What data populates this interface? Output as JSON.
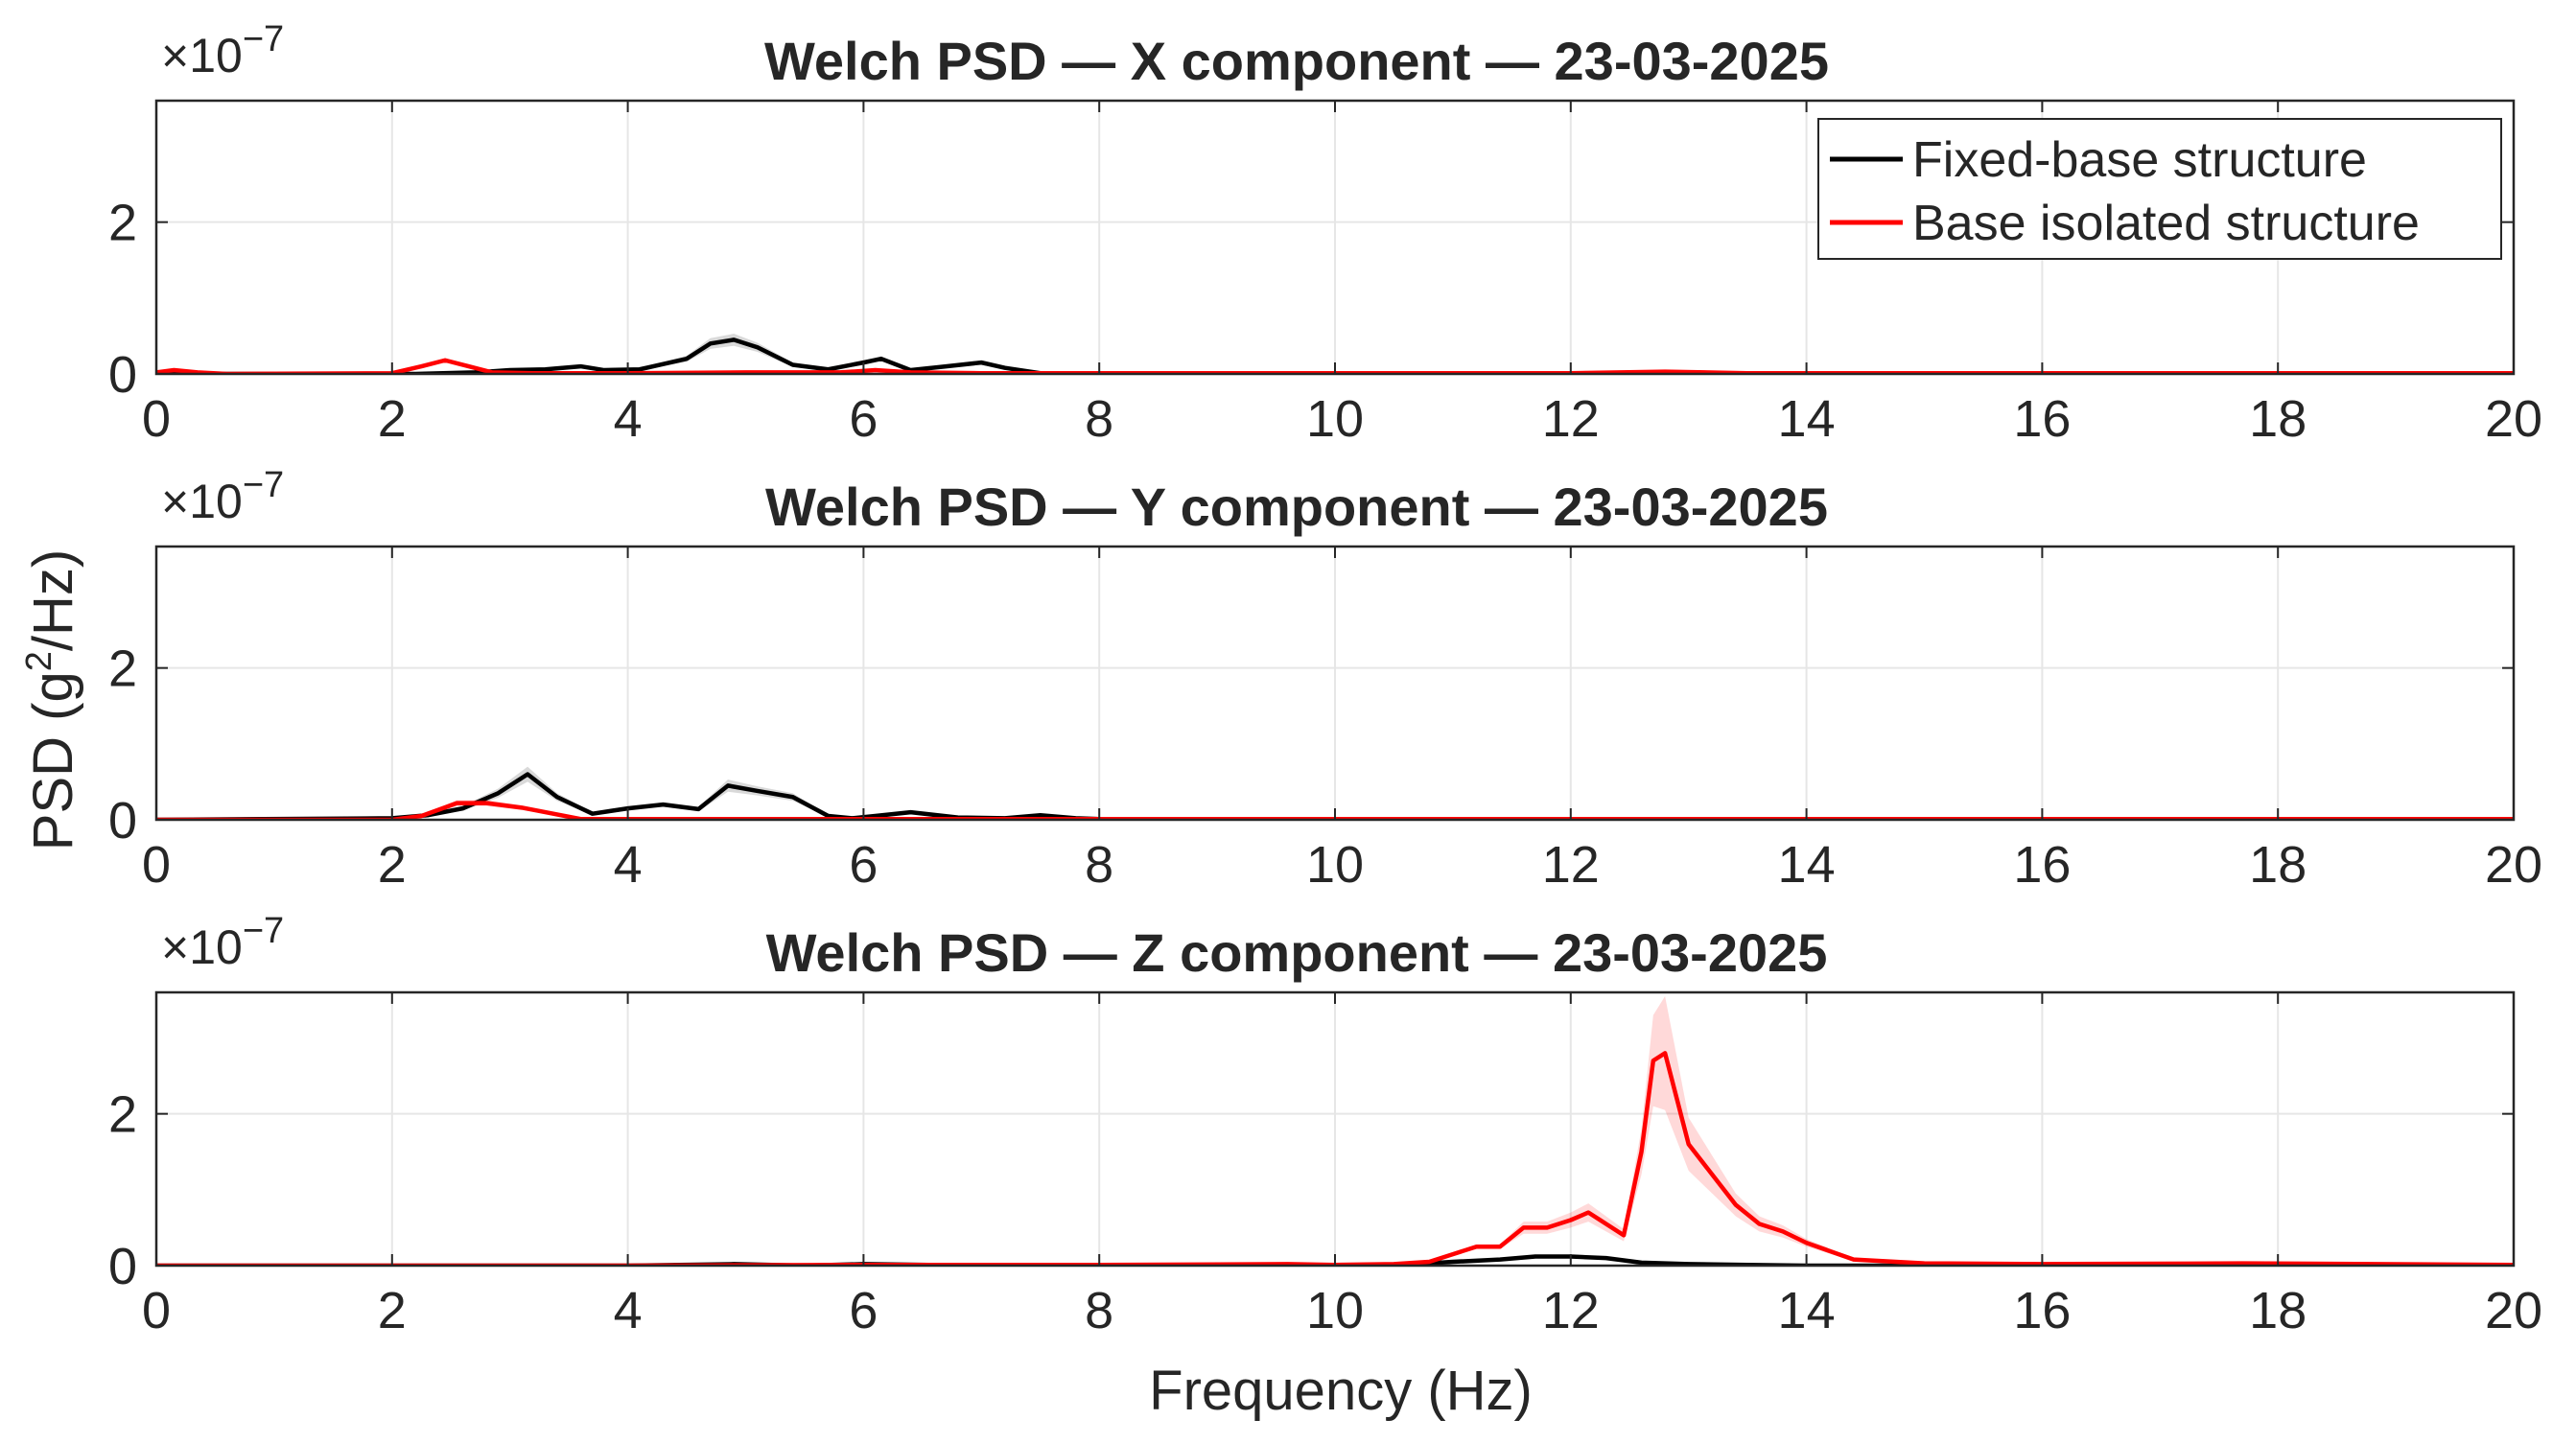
{
  "figure": {
    "ylabel_base": "PSD  (g",
    "ylabel_sup": "2",
    "ylabel_end": "/Hz)",
    "xlabel": "Frequency (Hz)",
    "exponent_prefix": "×10",
    "exponent_power": "−7"
  },
  "chart_data": [
    {
      "type": "line",
      "title": "Welch PSD — X component — 23-03-2025",
      "xlabel": "",
      "ylabel": "",
      "xlim": [
        0,
        20
      ],
      "ylim": [
        0,
        3.6
      ],
      "y_scale_factor": "1e-7",
      "xticks": [
        "0",
        "2",
        "4",
        "6",
        "8",
        "10",
        "12",
        "14",
        "16",
        "18",
        "20"
      ],
      "yticks": [
        "0",
        "2"
      ],
      "grid": true,
      "legend": {
        "placement": "top-right",
        "entries": [
          "Fixed-base structure",
          "Base isolated structure"
        ]
      },
      "series": [
        {
          "name": "Fixed-base structure",
          "color": "#000000",
          "x": [
            0,
            2.2,
            2.7,
            3.0,
            3.3,
            3.6,
            3.8,
            4.1,
            4.5,
            4.7,
            4.9,
            5.1,
            5.4,
            5.7,
            6.0,
            6.15,
            6.4,
            6.7,
            7.0,
            7.2,
            7.5,
            8,
            9,
            10,
            12,
            14,
            16,
            18,
            20
          ],
          "y": [
            0,
            0,
            0.02,
            0.05,
            0.06,
            0.1,
            0.05,
            0.06,
            0.2,
            0.4,
            0.45,
            0.35,
            0.12,
            0.06,
            0.15,
            0.2,
            0.05,
            0.1,
            0.15,
            0.08,
            0.01,
            0,
            0,
            0,
            0,
            0,
            0,
            0,
            0
          ],
          "band": [
            0,
            0,
            0.01,
            0.01,
            0.02,
            0.02,
            0.02,
            0.02,
            0.04,
            0.07,
            0.08,
            0.06,
            0.03,
            0.02,
            0.03,
            0.03,
            0.02,
            0.02,
            0.03,
            0.02,
            0,
            0,
            0,
            0,
            0,
            0,
            0,
            0,
            0
          ]
        },
        {
          "name": "Base isolated structure",
          "color": "#ff0000",
          "x": [
            0,
            0.15,
            0.35,
            0.6,
            2.0,
            2.25,
            2.45,
            2.65,
            2.85,
            3.2,
            4,
            5,
            5.8,
            6.1,
            6.4,
            7,
            8,
            10,
            12,
            12.8,
            13.5,
            14,
            16,
            18,
            20
          ],
          "y": [
            0.02,
            0.05,
            0.02,
            0,
            0.01,
            0.1,
            0.18,
            0.1,
            0.02,
            0.01,
            0.01,
            0.02,
            0.02,
            0.05,
            0.02,
            0.01,
            0.01,
            0.01,
            0.01,
            0.03,
            0.01,
            0.01,
            0.01,
            0.01,
            0.01
          ],
          "band": [
            0,
            0.01,
            0,
            0,
            0,
            0.02,
            0.03,
            0.02,
            0,
            0,
            0,
            0,
            0,
            0.01,
            0,
            0,
            0,
            0,
            0,
            0,
            0,
            0,
            0,
            0,
            0
          ]
        }
      ]
    },
    {
      "type": "line",
      "title": "Welch PSD — Y component — 23-03-2025",
      "xlabel": "",
      "ylabel": "",
      "xlim": [
        0,
        20
      ],
      "ylim": [
        0,
        3.6
      ],
      "y_scale_factor": "1e-7",
      "xticks": [
        "0",
        "2",
        "4",
        "6",
        "8",
        "10",
        "12",
        "14",
        "16",
        "18",
        "20"
      ],
      "yticks": [
        "0",
        "2"
      ],
      "grid": true,
      "series": [
        {
          "name": "Fixed-base structure",
          "color": "#000000",
          "x": [
            0,
            2.0,
            2.3,
            2.6,
            2.9,
            3.15,
            3.4,
            3.7,
            4.0,
            4.3,
            4.6,
            4.85,
            5.1,
            5.4,
            5.7,
            5.9,
            6.1,
            6.4,
            6.8,
            7.2,
            7.5,
            7.8,
            8,
            9,
            10,
            12,
            14,
            16,
            18,
            20
          ],
          "y": [
            0,
            0.02,
            0.06,
            0.15,
            0.35,
            0.6,
            0.3,
            0.08,
            0.15,
            0.2,
            0.14,
            0.45,
            0.38,
            0.3,
            0.05,
            0.02,
            0.05,
            0.1,
            0.03,
            0.02,
            0.06,
            0.02,
            0.01,
            0.01,
            0,
            0,
            0,
            0,
            0,
            0
          ],
          "band": [
            0,
            0,
            0.01,
            0.03,
            0.06,
            0.1,
            0.05,
            0.02,
            0.03,
            0.03,
            0.03,
            0.08,
            0.06,
            0.05,
            0.01,
            0,
            0.01,
            0.02,
            0.01,
            0,
            0.01,
            0,
            0,
            0,
            0,
            0,
            0,
            0,
            0,
            0
          ]
        },
        {
          "name": "Base isolated structure",
          "color": "#ff0000",
          "x": [
            0,
            2.0,
            2.25,
            2.55,
            2.8,
            3.1,
            3.3,
            3.6,
            4,
            5,
            6,
            8,
            10,
            12,
            14,
            16,
            18,
            20
          ],
          "y": [
            0,
            0,
            0.05,
            0.22,
            0.22,
            0.16,
            0.1,
            0.01,
            0.01,
            0.01,
            0.01,
            0.01,
            0.01,
            0.01,
            0.01,
            0.01,
            0.01,
            0.01
          ],
          "band": [
            0,
            0,
            0.01,
            0.04,
            0.04,
            0.03,
            0.02,
            0,
            0,
            0,
            0,
            0,
            0,
            0,
            0,
            0,
            0,
            0
          ]
        }
      ]
    },
    {
      "type": "line",
      "title": "Welch PSD — Z component — 23-03-2025",
      "xlabel": "Frequency (Hz)",
      "ylabel": "",
      "xlim": [
        0,
        20
      ],
      "ylim": [
        0,
        3.6
      ],
      "y_scale_factor": "1e-7",
      "xticks": [
        "0",
        "2",
        "4",
        "6",
        "8",
        "10",
        "12",
        "14",
        "16",
        "18",
        "20"
      ],
      "yticks": [
        "0",
        "2"
      ],
      "grid": true,
      "series": [
        {
          "name": "Fixed-base structure",
          "color": "#000000",
          "x": [
            0,
            2,
            4,
            4.9,
            5.5,
            6,
            7,
            8,
            10,
            10.5,
            11,
            11.4,
            11.7,
            12.0,
            12.3,
            12.6,
            13,
            13.5,
            14,
            16,
            18,
            20
          ],
          "y": [
            0,
            0,
            0,
            0.02,
            0,
            0.02,
            0,
            0,
            0,
            0,
            0.05,
            0.08,
            0.12,
            0.12,
            0.1,
            0.04,
            0.02,
            0.01,
            0,
            0,
            0,
            0
          ],
          "band": [
            0,
            0,
            0,
            0,
            0,
            0,
            0,
            0,
            0,
            0,
            0.01,
            0.02,
            0.02,
            0.02,
            0.02,
            0.01,
            0,
            0,
            0,
            0,
            0,
            0
          ]
        },
        {
          "name": "Base isolated structure",
          "color": "#ff0000",
          "x": [
            0,
            4,
            6,
            8,
            9.6,
            10,
            10.5,
            10.8,
            11.0,
            11.2,
            11.4,
            11.6,
            11.8,
            12.0,
            12.15,
            12.3,
            12.45,
            12.6,
            12.7,
            12.8,
            12.9,
            13.0,
            13.2,
            13.4,
            13.6,
            13.8,
            14.0,
            14.4,
            15,
            16,
            17.7,
            20
          ],
          "y": [
            0,
            0,
            0.01,
            0.01,
            0.02,
            0.01,
            0.02,
            0.05,
            0.15,
            0.25,
            0.25,
            0.5,
            0.5,
            0.6,
            0.7,
            0.55,
            0.4,
            1.5,
            2.7,
            2.8,
            2.2,
            1.6,
            1.2,
            0.8,
            0.55,
            0.45,
            0.3,
            0.08,
            0.03,
            0.02,
            0.03,
            0.01
          ],
          "band": [
            0,
            0,
            0,
            0,
            0,
            0,
            0,
            0.01,
            0.02,
            0.03,
            0.03,
            0.08,
            0.08,
            0.1,
            0.12,
            0.1,
            0.08,
            0.3,
            0.6,
            0.75,
            0.55,
            0.35,
            0.25,
            0.15,
            0.1,
            0.08,
            0.05,
            0.02,
            0,
            0,
            0,
            0
          ]
        }
      ]
    }
  ]
}
